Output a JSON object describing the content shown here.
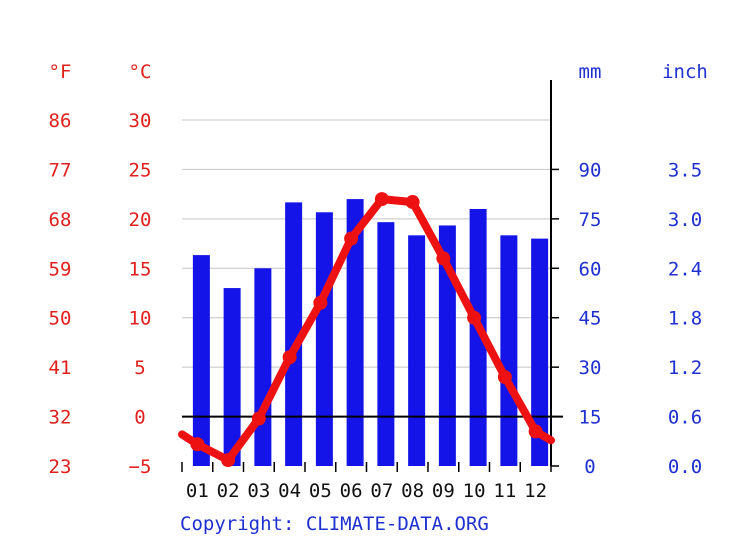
{
  "chart_data": {
    "type": "bar",
    "categories": [
      "01",
      "02",
      "03",
      "04",
      "05",
      "06",
      "07",
      "08",
      "09",
      "10",
      "11",
      "12"
    ],
    "series": [
      {
        "values": [
          64,
          54,
          60,
          80,
          77,
          81,
          74,
          70,
          73,
          78,
          70,
          69
        ]
      },
      {
        "values": [
          -2.8,
          -4.4,
          -0.2,
          6.0,
          11.5,
          18.0,
          22.0,
          21.7,
          16.0,
          10.0,
          4.0,
          -1.5
        ]
      }
    ],
    "left_axes": [
      {
        "unit": "°F",
        "ticks": [
          "86",
          "77",
          "68",
          "59",
          "50",
          "41",
          "32",
          "23"
        ]
      },
      {
        "unit": "°C",
        "ticks": [
          "30",
          "25",
          "20",
          "15",
          "10",
          "5",
          "0",
          "−5"
        ]
      }
    ],
    "right_axes": [
      {
        "unit": "mm",
        "ticks": [
          "90",
          "75",
          "60",
          "45",
          "30",
          "15",
          "0"
        ]
      },
      {
        "unit": "inch",
        "ticks": [
          "3.5",
          "3.0",
          "2.4",
          "1.8",
          "1.2",
          "0.6",
          "0.0"
        ]
      }
    ],
    "temp_range": [
      -5,
      30
    ],
    "precip_range": [
      0,
      105
    ],
    "grid": true,
    "colors": {
      "bars": "#1414e8",
      "line": "#ee1111",
      "temp_labels": "#e0201c",
      "precip_labels": "#1f30d0"
    },
    "copyright": "Copyright: CLIMATE-DATA.ORG"
  }
}
